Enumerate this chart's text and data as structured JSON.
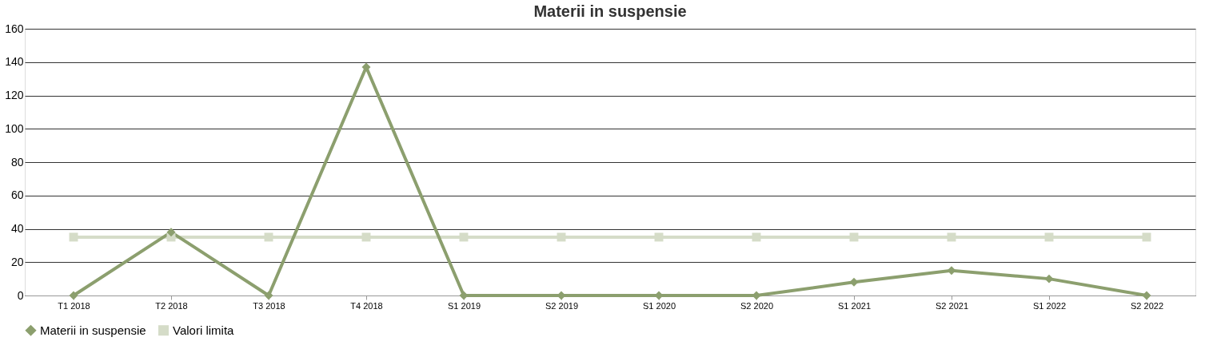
{
  "chart_data": {
    "type": "line",
    "title": "Materii in suspensie",
    "categories": [
      "T1 2018",
      "T2 2018",
      "T3 2018",
      "T4 2018",
      "S1 2019",
      "S2 2019",
      "S1 2020",
      "S2 2020",
      "S1 2021",
      "S2 2021",
      "S1 2022",
      "S2 2022"
    ],
    "series": [
      {
        "name": "Materii in suspensie",
        "color": "#8c9f6e",
        "marker": "diamond",
        "values": [
          0,
          38,
          0,
          137,
          0,
          0,
          0,
          0,
          8,
          15,
          10,
          0
        ]
      },
      {
        "name": "Valori limita",
        "color": "#d5dcc8",
        "marker": "square",
        "values": [
          35,
          35,
          35,
          35,
          35,
          35,
          35,
          35,
          35,
          35,
          35,
          35
        ]
      }
    ],
    "ylim": [
      0,
      160
    ],
    "yticks": [
      0,
      20,
      40,
      60,
      80,
      100,
      120,
      140,
      160
    ],
    "grid": "y",
    "legend": "bottom",
    "line_style": "solid"
  }
}
